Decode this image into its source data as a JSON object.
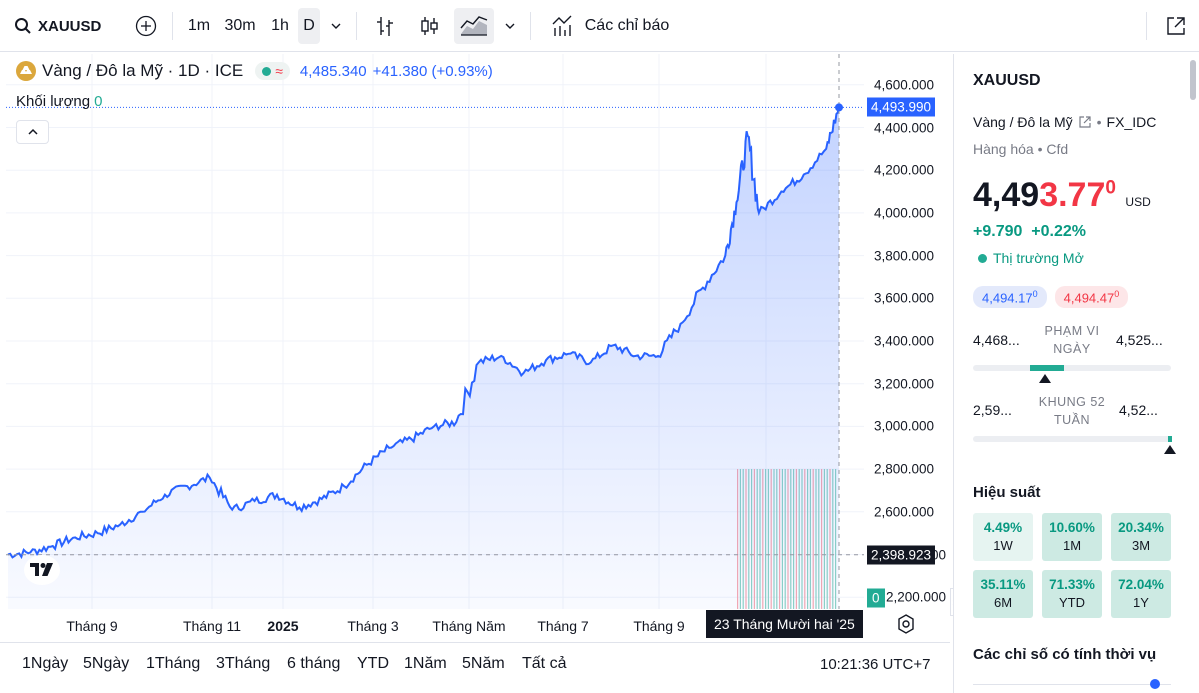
{
  "toolbar": {
    "symbol": "XAUUSD",
    "intervals": [
      "1m",
      "30m",
      "1h",
      "D"
    ],
    "active_interval": "D",
    "indicators_label": "Các chỉ báo"
  },
  "legend": {
    "title": "Vàng / Đô la Mỹ · 1D · ICE",
    "last": "4,485.340",
    "change": "+41.380 (+0.93%)",
    "volume_label": "Khối lượng",
    "volume_value": "0"
  },
  "price_scale": {
    "ticks": [
      "4,600.000",
      "4,400.000",
      "4,200.000",
      "4,000.000",
      "3,800.000",
      "3,600.000",
      "3,400.000",
      "3,200.000",
      "3,000.000",
      "2,800.000",
      "2,600.000",
      "2,400.000",
      "2,200.000"
    ],
    "last_price_badge": "4,493.990",
    "crosshair_price_badge": "2,398.923",
    "volume_badge": "0"
  },
  "time_scale": {
    "labels": [
      "Tháng 9",
      "Tháng 11",
      "2025",
      "Tháng 3",
      "Tháng Năm",
      "Tháng 7",
      "Tháng 9"
    ],
    "crosshair_date": "23 Tháng Mười hai '25"
  },
  "ranges": [
    "1Ngày",
    "5Ngày",
    "1Tháng",
    "3Tháng",
    "6 tháng",
    "YTD",
    "1Năm",
    "5Năm",
    "Tất cả"
  ],
  "clock": "10:21:36 UTC+7",
  "panel": {
    "symbol": "XAUUSD",
    "name": "Vàng / Đô la Mỹ",
    "exchange": "FX_IDC",
    "category": "Hàng hóa",
    "type": "Cfd",
    "price_main": "4,49",
    "price_highlight": "3.77",
    "price_sup": "0",
    "currency": "USD",
    "change_abs": "+9.790",
    "change_pct": "+0.22%",
    "market_status": "Thị trường Mở",
    "bid": "4,494.17",
    "bid_sup": "0",
    "ask": "4,494.47",
    "ask_sup": "0",
    "day_low": "4,468...",
    "day_label": "PHẠM VI NGÀY",
    "day_high": "4,525...",
    "wk52_low": "2,59...",
    "wk52_label": "KHUNG 52 TUẦN",
    "wk52_high": "4,52...",
    "performance_title": "Hiệu suất",
    "performance": [
      {
        "value": "4.49%",
        "label": "1W"
      },
      {
        "value": "10.60%",
        "label": "1M"
      },
      {
        "value": "20.34%",
        "label": "3M"
      },
      {
        "value": "35.11%",
        "label": "6M"
      },
      {
        "value": "71.33%",
        "label": "YTD"
      },
      {
        "value": "72.04%",
        "label": "1Y"
      }
    ],
    "seasonal_title": "Các chỉ số có tính thời vụ"
  },
  "colors": {
    "line": "#2962ff",
    "area_top": "#2962ff",
    "up": "#089981",
    "down": "#f23645",
    "badge_dark": "#131722"
  },
  "chart_data": {
    "type": "area",
    "ylim": [
      2200,
      4600
    ],
    "x": [
      "2024-07-22",
      "2024-08-05",
      "2024-08-19",
      "2024-09-02",
      "2024-09-16",
      "2024-09-30",
      "2024-10-14",
      "2024-10-28",
      "2024-11-11",
      "2024-11-25",
      "2024-12-09",
      "2024-12-23",
      "2025-01-06",
      "2025-01-20",
      "2025-02-03",
      "2025-02-17",
      "2025-03-03",
      "2025-03-17",
      "2025-03-31",
      "2025-04-14",
      "2025-04-28",
      "2025-05-12",
      "2025-05-26",
      "2025-06-09",
      "2025-06-23",
      "2025-07-07",
      "2025-07-21",
      "2025-08-04",
      "2025-08-18",
      "2025-09-01",
      "2025-09-15",
      "2025-09-29",
      "2025-10-13",
      "2025-10-20",
      "2025-10-27",
      "2025-11-03",
      "2025-11-17",
      "2025-12-01",
      "2025-12-15",
      "2025-12-23"
    ],
    "values": [
      2400,
      2410,
      2440,
      2480,
      2500,
      2540,
      2600,
      2680,
      2720,
      2760,
      2610,
      2650,
      2680,
      2620,
      2660,
      2720,
      2820,
      2900,
      2940,
      3000,
      3020,
      3300,
      3330,
      3250,
      3310,
      3340,
      3300,
      3380,
      3330,
      3330,
      3480,
      3650,
      3800,
      4050,
      4360,
      4000,
      4100,
      4180,
      4300,
      4493.99
    ]
  }
}
